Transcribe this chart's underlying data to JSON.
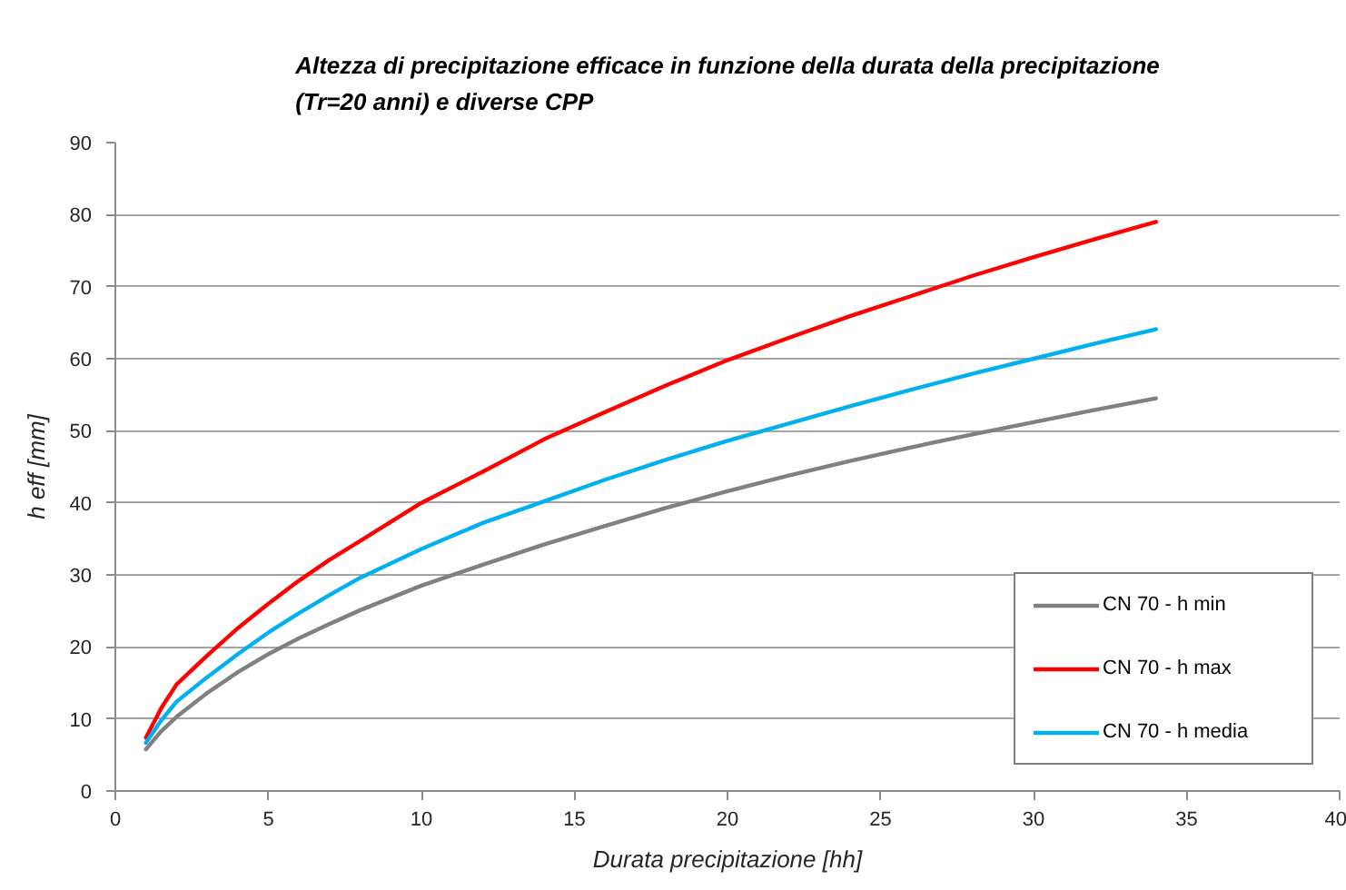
{
  "chart_data": {
    "type": "line",
    "title": "Altezza di precipitazione efficace in funzione della durata della precipitazione\n(Tr=20 anni) e diverse CPP",
    "xlabel": "Durata precipitazione [hh]",
    "ylabel": "h eff [mm]",
    "xlim": [
      0,
      40
    ],
    "ylim": [
      0,
      90
    ],
    "xticks": [
      0,
      5,
      10,
      15,
      20,
      25,
      30,
      35,
      40
    ],
    "yticks": [
      0,
      10,
      20,
      30,
      40,
      50,
      60,
      70,
      80,
      90
    ],
    "grid": "y",
    "legend": "bottom right",
    "line_style": "solid",
    "x": [
      1,
      1.5,
      2,
      3,
      4,
      5,
      6,
      7,
      8,
      10,
      12,
      14,
      16,
      18,
      20,
      22,
      24,
      26,
      28,
      30,
      32,
      34
    ],
    "series": [
      {
        "name": "CN 70 - h min",
        "color": "#808080",
        "values": [
          5.8,
          8.3,
          10.3,
          13.6,
          16.5,
          19,
          21.2,
          23.2,
          25.1,
          28.5,
          31.4,
          34.2,
          36.8,
          39.3,
          41.6,
          43.8,
          45.8,
          47.7,
          49.5,
          51.2,
          52.9,
          54.5
        ]
      },
      {
        "name": "CN 70 - h max",
        "color": "#ff0000",
        "values": [
          7.4,
          11.5,
          14.8,
          18.8,
          22.6,
          26,
          29.2,
          32.1,
          34.7,
          40,
          44.3,
          48.8,
          52.6,
          56.3,
          59.8,
          62.9,
          65.9,
          68.7,
          71.5,
          74.1,
          76.6,
          79
        ]
      },
      {
        "name": "CN 70 - h media",
        "color": "#00b0f0",
        "values": [
          6.7,
          9.8,
          12.4,
          15.8,
          19,
          22,
          24.7,
          27.2,
          29.6,
          33.6,
          37.2,
          40.2,
          43.2,
          46,
          48.6,
          51,
          53.4,
          55.7,
          57.9,
          60,
          62.1,
          64.1
        ]
      }
    ]
  }
}
